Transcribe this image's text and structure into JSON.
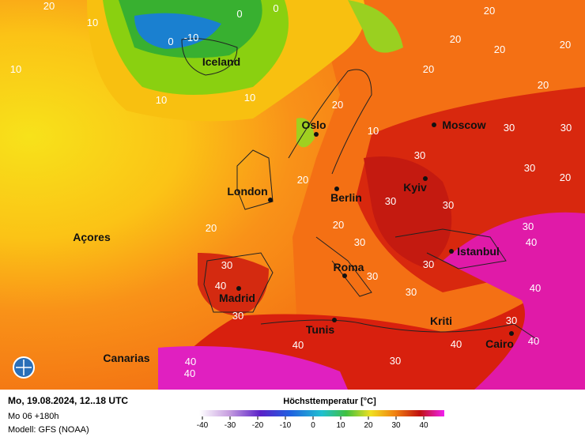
{
  "map": {
    "cities": [
      "Iceland",
      "Oslo",
      "Moscow",
      "London",
      "Berlin",
      "Kyiv",
      "Açores",
      "Istanbul",
      "Roma",
      "Madrid",
      "Tunis",
      "Kriti",
      "Canarias",
      "Cairo"
    ],
    "contour_labels": [
      20,
      10,
      0,
      0,
      0,
      -10,
      10,
      10,
      10,
      20,
      10,
      20,
      20,
      30,
      30,
      30,
      30,
      30,
      30,
      30,
      20,
      30,
      40,
      40,
      20,
      20,
      20,
      20,
      20,
      20,
      20,
      30,
      40,
      30,
      30,
      30,
      30,
      40,
      30,
      40,
      30,
      40,
      40,
      40
    ]
  },
  "footer": {
    "date": "Mo, 19.08.2024, 12..18 UTC",
    "run": "Mo 06 +180h",
    "model": "Modell: GFS (NOAA)"
  },
  "legend": {
    "title": "Höchsttemperatur [°C]",
    "ticks": [
      -40,
      -30,
      -20,
      -10,
      0,
      10,
      20,
      30,
      40
    ]
  }
}
